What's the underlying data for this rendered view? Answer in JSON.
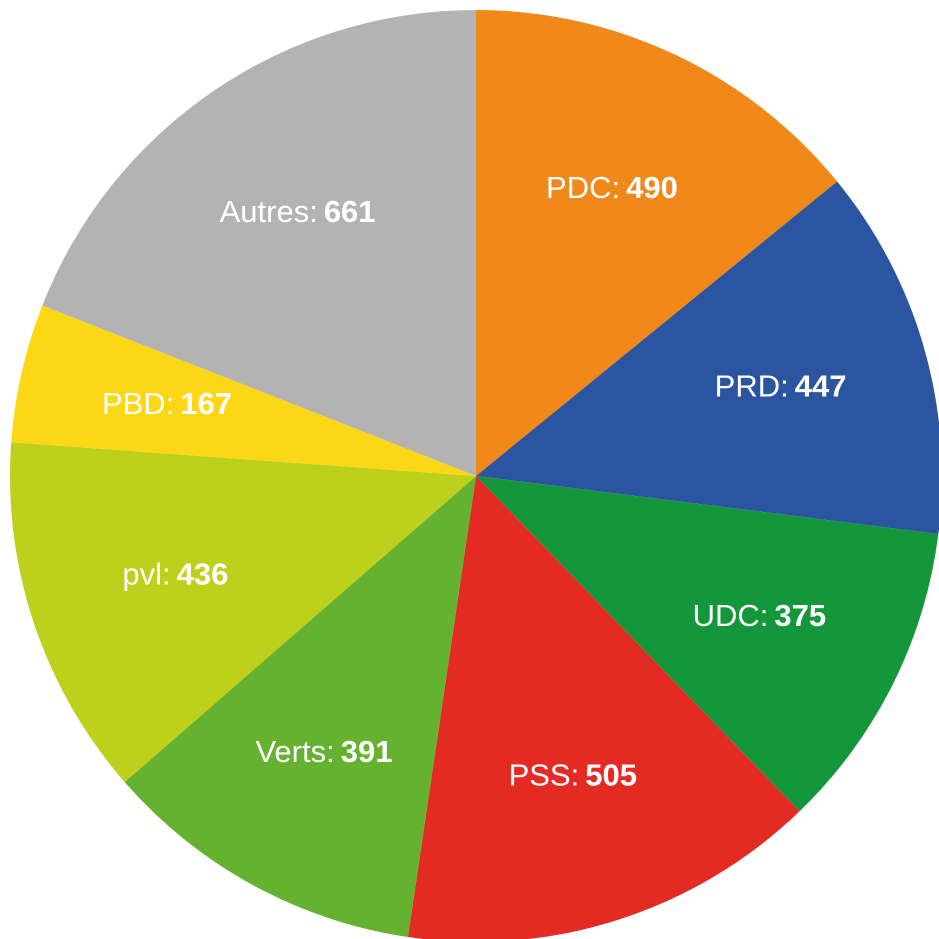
{
  "chart_data": {
    "type": "pie",
    "categories": [
      "PDC:",
      "PRD:",
      "UDC:",
      "PSS:",
      "Verts:",
      "pvl:",
      "PBD:",
      "Autres:"
    ],
    "values": [
      490,
      447,
      375,
      505,
      391,
      436,
      167,
      661
    ],
    "colors": [
      "#f0891a",
      "#2b54a1",
      "#14963a",
      "#e32b24",
      "#64b22f",
      "#bcd01c",
      "#fcd716",
      "#b3b3b3"
    ]
  }
}
